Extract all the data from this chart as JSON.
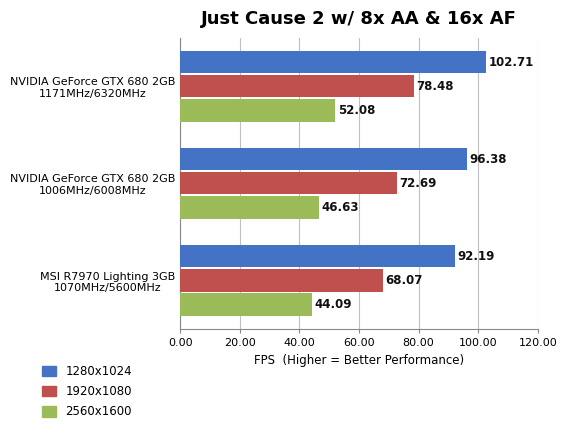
{
  "title": "Just Cause 2 w/ 8x AA & 16x AF",
  "categories": [
    "MSI R7970 Lighting 3GB\n1070MHz/5600MHz",
    "NVIDIA GeForce GTX 680 2GB\n1006MHz/6008MHz",
    "NVIDIA GeForce GTX 680 2GB\n1171MHz/6320MHz"
  ],
  "series": {
    "1280x1024": [
      92.19,
      96.38,
      102.71
    ],
    "1920x1080": [
      68.07,
      72.69,
      78.48
    ],
    "2560x1600": [
      44.09,
      46.63,
      52.08
    ]
  },
  "colors": {
    "1280x1024": "#4472C4",
    "1920x1080": "#C0504D",
    "2560x1600": "#9BBB59"
  },
  "xlim": [
    0,
    120
  ],
  "xticks": [
    0,
    20,
    40,
    60,
    80,
    100,
    120
  ],
  "xtick_labels": [
    "0.00",
    "20.00",
    "40.00",
    "60.00",
    "80.00",
    "100.00",
    "120.00"
  ],
  "xlabel": "FPS  (Higher = Better Performance)",
  "bar_height": 0.25,
  "value_fontsize": 8.5,
  "label_fontsize": 8,
  "title_fontsize": 13,
  "background_color": "#FFFFFF",
  "grid_color": "#C0C0C0",
  "legend_labels": [
    "1280x1024",
    "1920x1080",
    "2560x1600"
  ]
}
